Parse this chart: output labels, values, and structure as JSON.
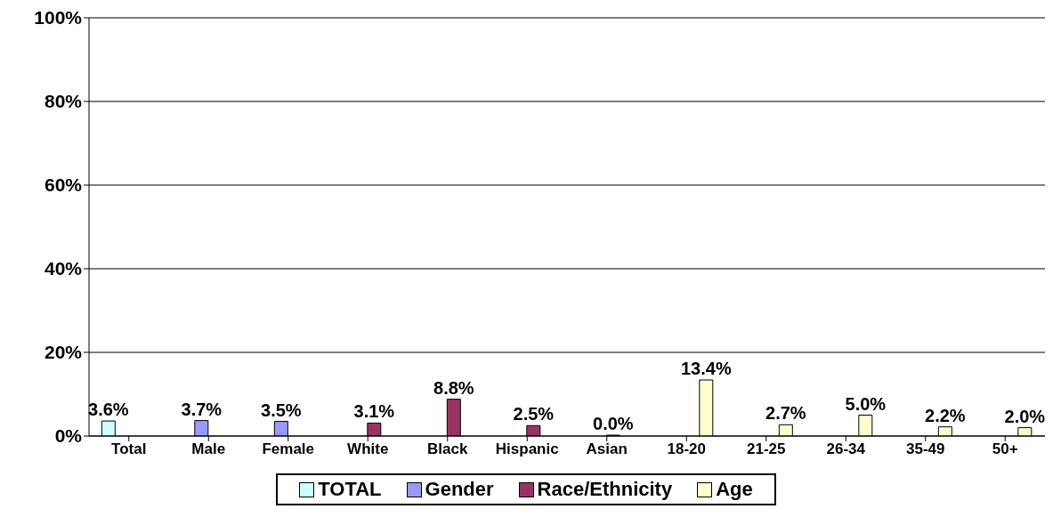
{
  "chart_data": {
    "type": "bar",
    "categories": [
      "Total",
      "Male",
      "Female",
      "White",
      "Black",
      "Hispanic",
      "Asian",
      "18-20",
      "21-25",
      "26-34",
      "35-49",
      "50+"
    ],
    "series": [
      {
        "name": "TOTAL",
        "color": "#ccffff",
        "values": [
          3.6,
          null,
          null,
          null,
          null,
          null,
          null,
          null,
          null,
          null,
          null,
          null
        ],
        "value_labels": [
          "3.6%",
          null,
          null,
          null,
          null,
          null,
          null,
          null,
          null,
          null,
          null,
          null
        ]
      },
      {
        "name": "Gender",
        "color": "#9999ff",
        "values": [
          null,
          3.7,
          3.5,
          null,
          null,
          null,
          null,
          null,
          null,
          null,
          null,
          null
        ],
        "value_labels": [
          null,
          "3.7%",
          "3.5%",
          null,
          null,
          null,
          null,
          null,
          null,
          null,
          null,
          null
        ]
      },
      {
        "name": "Race/Ethnicity",
        "color": "#993366",
        "values": [
          null,
          null,
          null,
          3.1,
          8.8,
          2.5,
          0.0,
          null,
          null,
          null,
          null,
          null
        ],
        "value_labels": [
          null,
          null,
          null,
          "3.1%",
          "8.8%",
          "2.5%",
          "0.0%",
          null,
          null,
          null,
          null,
          null
        ]
      },
      {
        "name": "Age",
        "color": "#ffffcc",
        "values": [
          null,
          null,
          null,
          null,
          null,
          null,
          null,
          13.4,
          2.7,
          5.0,
          2.2,
          2.0
        ],
        "value_labels": [
          null,
          null,
          null,
          null,
          null,
          null,
          null,
          "13.4%",
          "2.7%",
          "5.0%",
          "2.2%",
          "2.0%"
        ]
      }
    ],
    "ylim": [
      0,
      100
    ],
    "yticks": [
      {
        "value": 0,
        "label": "0%"
      },
      {
        "value": 20,
        "label": "20%"
      },
      {
        "value": 40,
        "label": "40%"
      },
      {
        "value": 60,
        "label": "60%"
      },
      {
        "value": 80,
        "label": "80%"
      },
      {
        "value": 100,
        "label": "100%"
      }
    ],
    "grid": "y",
    "legend": "bottom"
  }
}
